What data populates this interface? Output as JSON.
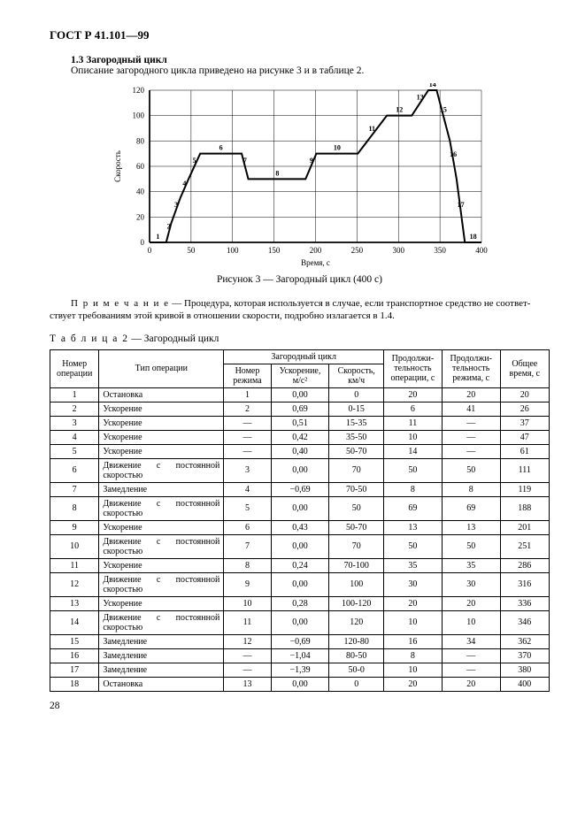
{
  "doc_title": "ГОСТ Р 41.101—99",
  "section_number": "1.3",
  "section_title": "Загородный цикл",
  "section_body": "Описание загородного цикла приведено на рисунке 3 и в таблице 2.",
  "chart": {
    "type": "line",
    "xlabel": "Время, с",
    "ylabel": "Скорость",
    "xlim": [
      0,
      400
    ],
    "ylim": [
      0,
      120
    ],
    "xtick_step": 50,
    "ytick_step": 20,
    "axis_color": "#000000",
    "grid_color": "#000000",
    "line_color": "#000000",
    "line_width": 2,
    "background_color": "#ffffff",
    "point_labels": [
      "1",
      "2",
      "3",
      "4",
      "5",
      "6",
      "7",
      "8",
      "9",
      "10",
      "11",
      "12",
      "13",
      "14",
      "15",
      "16",
      "17",
      "18"
    ],
    "data": [
      {
        "t": 0,
        "v": 0
      },
      {
        "t": 20,
        "v": 0
      },
      {
        "t": 26,
        "v": 15
      },
      {
        "t": 37,
        "v": 35
      },
      {
        "t": 47,
        "v": 50
      },
      {
        "t": 61,
        "v": 70
      },
      {
        "t": 111,
        "v": 70
      },
      {
        "t": 119,
        "v": 50
      },
      {
        "t": 188,
        "v": 50
      },
      {
        "t": 201,
        "v": 70
      },
      {
        "t": 251,
        "v": 70
      },
      {
        "t": 286,
        "v": 100
      },
      {
        "t": 316,
        "v": 100
      },
      {
        "t": 336,
        "v": 120
      },
      {
        "t": 346,
        "v": 120
      },
      {
        "t": 362,
        "v": 80
      },
      {
        "t": 370,
        "v": 50
      },
      {
        "t": 380,
        "v": 0
      },
      {
        "t": 400,
        "v": 0
      }
    ],
    "label_positions": [
      {
        "n": "1",
        "t": 10,
        "v": 0
      },
      {
        "n": "2",
        "t": 23,
        "v": 8
      },
      {
        "n": "3",
        "t": 32,
        "v": 25
      },
      {
        "n": "4",
        "t": 42,
        "v": 42
      },
      {
        "n": "5",
        "t": 54,
        "v": 60
      },
      {
        "n": "6",
        "t": 86,
        "v": 70
      },
      {
        "n": "7",
        "t": 115,
        "v": 60
      },
      {
        "n": "8",
        "t": 154,
        "v": 50
      },
      {
        "n": "9",
        "t": 195,
        "v": 60
      },
      {
        "n": "10",
        "t": 226,
        "v": 70
      },
      {
        "n": "11",
        "t": 268,
        "v": 85
      },
      {
        "n": "12",
        "t": 301,
        "v": 100
      },
      {
        "n": "13",
        "t": 326,
        "v": 110
      },
      {
        "n": "14",
        "t": 341,
        "v": 120
      },
      {
        "n": "15",
        "t": 354,
        "v": 100
      },
      {
        "n": "16",
        "t": 366,
        "v": 65
      },
      {
        "n": "17",
        "t": 375,
        "v": 25
      },
      {
        "n": "18",
        "t": 390,
        "v": 0
      }
    ]
  },
  "chart_caption": "Рисунок 3 — Загородный цикл (400 с)",
  "note_prefix": "П р и м е ч а н и е",
  "note_body": " — Процедура, которая используется в случае, если транспортное средство не соответ­ствует требованиям этой кривой в отношении скорости, подробно излагается в 1.4.",
  "table_caption_prefix": "Т а б л и ц а  2",
  "table_caption_body": " — Загородный цикл",
  "table": {
    "headers": {
      "op_num": "Номер операции",
      "op_type": "Тип операции",
      "group": "Загородный цикл",
      "mode": "Номер режима",
      "acc": "Ускорение, м/с²",
      "speed": "Скорость, км/ч",
      "dur": "Продолжи­тельность операции, с",
      "mode_dur": "Продолжи­тельность режима, с",
      "total": "Общее время, с"
    },
    "rows": [
      {
        "n": "1",
        "type": "Остановка",
        "mode": "1",
        "acc": "0,00",
        "spd": "0",
        "dur": "20",
        "md": "20",
        "tot": "20"
      },
      {
        "n": "2",
        "type": "Ускорение",
        "mode": "2",
        "acc": "0,69",
        "spd": "0-15",
        "dur": "6",
        "md": "41",
        "tot": "26"
      },
      {
        "n": "3",
        "type": "Ускорение",
        "mode": "—",
        "acc": "0,51",
        "spd": "15-35",
        "dur": "11",
        "md": "—",
        "tot": "37"
      },
      {
        "n": "4",
        "type": "Ускорение",
        "mode": "—",
        "acc": "0,42",
        "spd": "35-50",
        "dur": "10",
        "md": "—",
        "tot": "47"
      },
      {
        "n": "5",
        "type": "Ускорение",
        "mode": "—",
        "acc": "0,40",
        "spd": "50-70",
        "dur": "14",
        "md": "—",
        "tot": "61"
      },
      {
        "n": "6",
        "type": "Движение с постоянной скоростью",
        "mode": "3",
        "acc": "0,00",
        "spd": "70",
        "dur": "50",
        "md": "50",
        "tot": "111",
        "justify": true
      },
      {
        "n": "7",
        "type": "Замедление",
        "mode": "4",
        "acc": "−0,69",
        "spd": "70-50",
        "dur": "8",
        "md": "8",
        "tot": "119"
      },
      {
        "n": "8",
        "type": "Движение с постоянной скоростью",
        "mode": "5",
        "acc": "0,00",
        "spd": "50",
        "dur": "69",
        "md": "69",
        "tot": "188",
        "justify": true
      },
      {
        "n": "9",
        "type": "Ускорение",
        "mode": "6",
        "acc": "0,43",
        "spd": "50-70",
        "dur": "13",
        "md": "13",
        "tot": "201"
      },
      {
        "n": "10",
        "type": "Движение с постоянной скоростью",
        "mode": "7",
        "acc": "0,00",
        "spd": "70",
        "dur": "50",
        "md": "50",
        "tot": "251",
        "justify": true
      },
      {
        "n": "11",
        "type": "Ускорение",
        "mode": "8",
        "acc": "0,24",
        "spd": "70-100",
        "dur": "35",
        "md": "35",
        "tot": "286"
      },
      {
        "n": "12",
        "type": "Движение с постоянной скоростью",
        "mode": "9",
        "acc": "0,00",
        "spd": "100",
        "dur": "30",
        "md": "30",
        "tot": "316",
        "justify": true
      },
      {
        "n": "13",
        "type": "Ускорение",
        "mode": "10",
        "acc": "0,28",
        "spd": "100-120",
        "dur": "20",
        "md": "20",
        "tot": "336"
      },
      {
        "n": "14",
        "type": "Движение с постоянной скоростью",
        "mode": "11",
        "acc": "0,00",
        "spd": "120",
        "dur": "10",
        "md": "10",
        "tot": "346",
        "justify": true
      },
      {
        "n": "15",
        "type": "Замедление",
        "mode": "12",
        "acc": "−0,69",
        "spd": "120-80",
        "dur": "16",
        "md": "34",
        "tot": "362"
      },
      {
        "n": "16",
        "type": "Замедление",
        "mode": "—",
        "acc": "−1,04",
        "spd": "80-50",
        "dur": "8",
        "md": "—",
        "tot": "370"
      },
      {
        "n": "17",
        "type": "Замедление",
        "mode": "—",
        "acc": "−1,39",
        "spd": "50-0",
        "dur": "10",
        "md": "—",
        "tot": "380"
      },
      {
        "n": "18",
        "type": "Остановка",
        "mode": "13",
        "acc": "0,00",
        "spd": "0",
        "dur": "20",
        "md": "20",
        "tot": "400"
      }
    ]
  },
  "page_number": "28"
}
